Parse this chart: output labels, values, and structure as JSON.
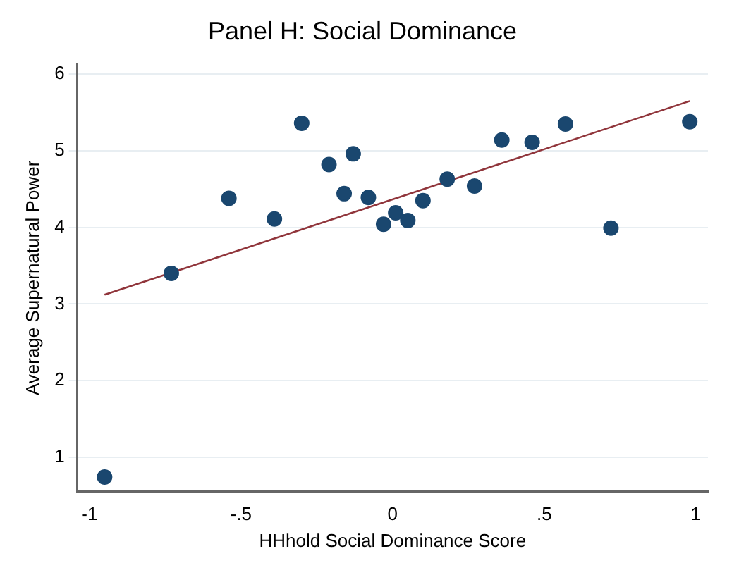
{
  "chart_data": {
    "type": "scatter",
    "title": "Panel H: Social Dominance",
    "xlabel": "HHhold Social Dominance Score",
    "ylabel": "Average Supernatural Power",
    "xlim": [
      -1.04,
      1.04
    ],
    "ylim": [
      0.55,
      6.13
    ],
    "xticks": [
      {
        "value": -1,
        "label": "-1"
      },
      {
        "value": -0.5,
        "label": "-.5"
      },
      0,
      {
        "value": 0.5,
        "label": ".5"
      },
      1
    ],
    "yticks": [
      1,
      2,
      3,
      4,
      5,
      6
    ],
    "grid": "y",
    "legend": false,
    "marker": "circle",
    "series": [
      {
        "color": "#1a476f",
        "x": [
          -0.95,
          -0.73,
          -0.54,
          -0.39,
          -0.3,
          -0.21,
          -0.16,
          -0.13,
          -0.08,
          -0.03,
          0.01,
          0.05,
          0.1,
          0.18,
          0.27,
          0.36,
          0.46,
          0.57,
          0.72,
          0.98
        ],
        "values": [
          0.74,
          3.4,
          4.38,
          4.11,
          5.36,
          4.82,
          4.44,
          4.96,
          4.39,
          4.04,
          4.19,
          4.09,
          4.35,
          4.63,
          4.54,
          5.14,
          5.11,
          5.35,
          3.99,
          5.38
        ]
      },
      {
        "type": "line",
        "color": "#90353b",
        "x": [
          -0.95,
          0.98
        ],
        "values": [
          3.12,
          5.65
        ],
        "marker": "none"
      }
    ]
  }
}
